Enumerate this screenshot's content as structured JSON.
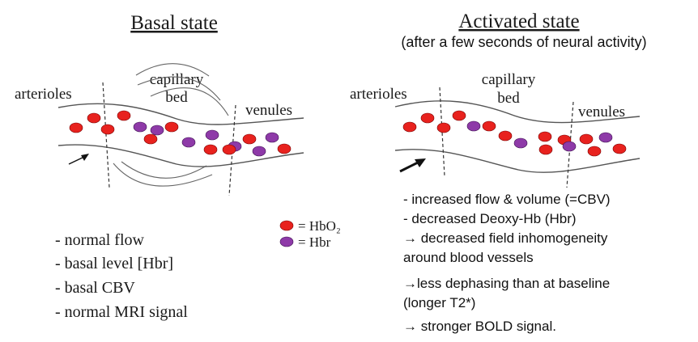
{
  "basal": {
    "title": "Basal state",
    "arterioles": "arterioles",
    "capillary_line1": "capillary",
    "capillary_line2": "bed",
    "venules": "venules",
    "notes": [
      "- normal flow",
      "- basal level [Hbr]",
      "- basal CBV",
      "- normal MRI signal"
    ]
  },
  "activated": {
    "title": "Activated state",
    "subtitle": "(after a few seconds of neural activity)",
    "arterioles": "arterioles",
    "capillary_line1": "capillary",
    "capillary_line2": "bed",
    "venules": "venules",
    "notes": [
      "- increased flow & volume (=CBV)",
      "- decreased Deoxy-Hb (Hbr)",
      "→ decreased field inhomogeneity",
      "around blood vessels",
      "→less dephasing than at baseline",
      "(longer T2*)",
      "→ stronger BOLD signal."
    ]
  },
  "legend": {
    "hbo2": "= HbO₂",
    "hbr": "= Hbr"
  },
  "colors": {
    "hbo2": "#e8221e",
    "hbr": "#8e3aa8"
  }
}
